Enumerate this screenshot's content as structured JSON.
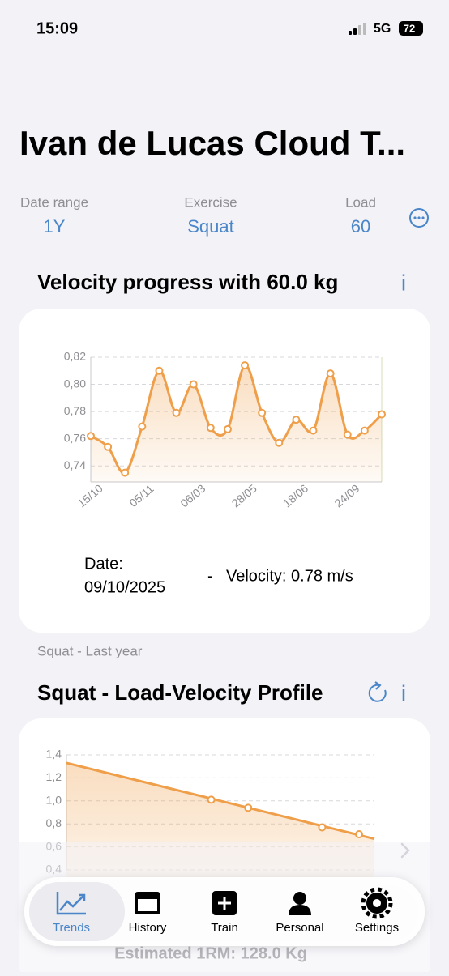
{
  "status_bar": {
    "time": "15:09",
    "network": "5G",
    "battery": "72"
  },
  "header": {
    "title": "Ivan de Lucas Cloud T..."
  },
  "filters": [
    {
      "label": "Date range",
      "value": "1Y"
    },
    {
      "label": "Exercise",
      "value": "Squat"
    },
    {
      "label": "Load",
      "value": "60"
    }
  ],
  "sections": [
    {
      "title": "Velocity progress with 60.0 kg",
      "info": "i"
    },
    {
      "title": "Squat - Load-Velocity Profile",
      "info": "i"
    }
  ],
  "selection": {
    "date_label": "Date:",
    "date": "09/10/2025",
    "separator": "-",
    "velocity": "Velocity: 0.78 m/s"
  },
  "chart_caption": "Squat - Last year",
  "footer": "Estimated 1RM: 128.0 Kg",
  "tabs": [
    "Trends",
    "History",
    "Train",
    "Personal",
    "Settings"
  ],
  "chart_data": [
    {
      "type": "line",
      "categories": [
        "15/10",
        null,
        null,
        "05/11",
        null,
        null,
        "06/03",
        null,
        null,
        "28/05",
        null,
        null,
        "18/06",
        null,
        null,
        "24/09",
        null,
        null
      ],
      "values": [
        0.762,
        0.754,
        0.735,
        0.769,
        0.81,
        0.779,
        0.8,
        0.768,
        0.767,
        0.814,
        0.779,
        0.757,
        0.774,
        0.766,
        0.808,
        0.763,
        0.766,
        0.778
      ],
      "color": "#ef9f4a",
      "ylim": [
        0.73,
        0.82
      ],
      "yticks": [
        {
          "value": 0.74,
          "label": "0,74"
        },
        {
          "value": 0.76,
          "label": "0,76"
        },
        {
          "value": 0.78,
          "label": "0,78"
        },
        {
          "value": 0.8,
          "label": "0,80"
        },
        {
          "value": 0.82,
          "label": "0,82"
        }
      ],
      "grid": true
    },
    {
      "type": "scatter",
      "x": [
        47,
        59,
        83,
        95
      ],
      "values": [
        1.01,
        0.94,
        0.77,
        0.71
      ],
      "trend_line": {
        "x": [
          0,
          100
        ],
        "values": [
          1.33,
          0.67
        ]
      },
      "color": "#ef9f4a",
      "xlim": [
        0,
        100
      ],
      "ylim": [
        0.4,
        1.4
      ],
      "yticks": [
        {
          "value": 0.4,
          "label": "0,4"
        },
        {
          "value": 0.6,
          "label": "0,6"
        },
        {
          "value": 0.8,
          "label": "0,8"
        },
        {
          "value": 1.0,
          "label": "1,0"
        },
        {
          "value": 1.2,
          "label": "1,2"
        },
        {
          "value": 1.4,
          "label": "1,4"
        }
      ],
      "grid": true
    }
  ]
}
